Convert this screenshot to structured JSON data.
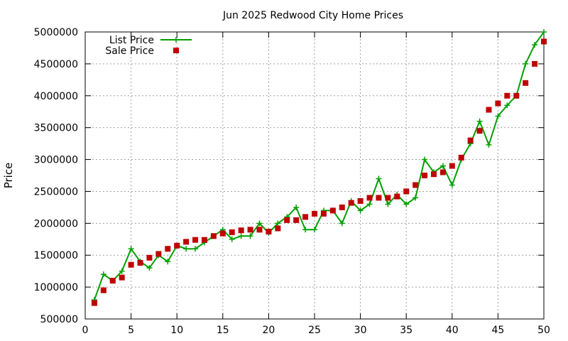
{
  "chart_data": {
    "type": "line",
    "title": "Jun 2025 Redwood City Home Prices",
    "xlabel": "",
    "ylabel": "Price",
    "xlim": [
      0,
      50
    ],
    "ylim": [
      500000,
      5000000
    ],
    "x_ticks": [
      0,
      5,
      10,
      15,
      20,
      25,
      30,
      35,
      40,
      45,
      50
    ],
    "y_ticks": [
      500000,
      1000000,
      1500000,
      2000000,
      2500000,
      3000000,
      3500000,
      4000000,
      4500000,
      5000000
    ],
    "grid": true,
    "legend_position": "top-left",
    "x": [
      1,
      2,
      3,
      4,
      5,
      6,
      7,
      8,
      9,
      10,
      11,
      12,
      13,
      14,
      15,
      16,
      17,
      18,
      19,
      20,
      21,
      22,
      23,
      24,
      25,
      26,
      27,
      28,
      29,
      30,
      31,
      32,
      33,
      34,
      35,
      36,
      37,
      38,
      39,
      40,
      41,
      42,
      43,
      44,
      45,
      46,
      47,
      48,
      49,
      50
    ],
    "series": [
      {
        "name": "List Price",
        "style": "line+cross",
        "color": "#00a000",
        "values": [
          800000,
          1200000,
          1100000,
          1250000,
          1600000,
          1400000,
          1300000,
          1500000,
          1400000,
          1650000,
          1600000,
          1600000,
          1700000,
          1800000,
          1900000,
          1750000,
          1800000,
          1800000,
          2000000,
          1850000,
          2000000,
          2100000,
          2250000,
          1900000,
          1900000,
          2200000,
          2200000,
          2000000,
          2350000,
          2200000,
          2300000,
          2700000,
          2300000,
          2450000,
          2300000,
          2400000,
          3000000,
          2800000,
          2900000,
          2600000,
          3000000,
          3250000,
          3600000,
          3230000,
          3680000,
          3850000,
          4000000,
          4500000,
          4800000,
          5000000
        ]
      },
      {
        "name": "Sale Price",
        "style": "square-markers",
        "color": "#c00000",
        "values": [
          750000,
          950000,
          1100000,
          1150000,
          1350000,
          1380000,
          1460000,
          1520000,
          1600000,
          1650000,
          1710000,
          1740000,
          1740000,
          1800000,
          1840000,
          1860000,
          1890000,
          1900000,
          1900000,
          1870000,
          1920000,
          2050000,
          2050000,
          2100000,
          2150000,
          2150000,
          2200000,
          2250000,
          2320000,
          2350000,
          2400000,
          2400000,
          2400000,
          2420000,
          2500000,
          2600000,
          2750000,
          2770000,
          2800000,
          2900000,
          3030000,
          3300000,
          3450000,
          3780000,
          3880000,
          4000000,
          4000000,
          4200000,
          4500000,
          4850000
        ]
      }
    ]
  }
}
